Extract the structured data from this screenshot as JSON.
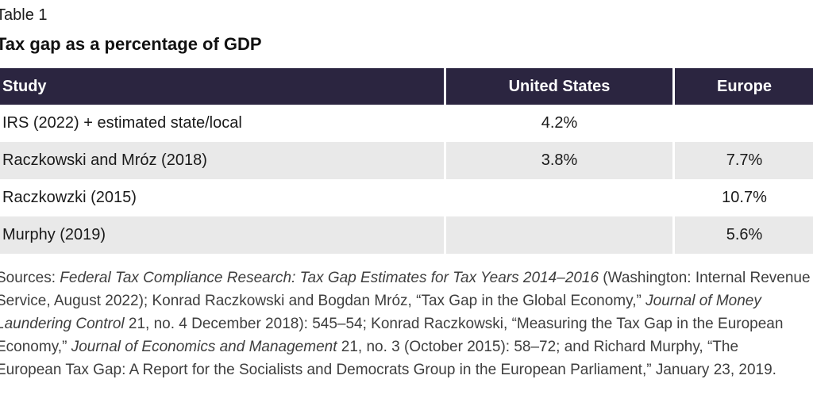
{
  "page": {
    "table_label": "Table 1",
    "title": "Tax gap as a percentage of GDP"
  },
  "colors": {
    "header_bg": "#2b2540",
    "alt_row_bg": "#e9e9e9",
    "sources_text": "#3e3e3e"
  },
  "table": {
    "headers": [
      "Study",
      "United States",
      "Europe"
    ],
    "rows": [
      {
        "study": "IRS (2022) + estimated state/local",
        "us": "4.2%",
        "europe": ""
      },
      {
        "study": "Raczkowski and Mróz (2018)",
        "us": "3.8%",
        "europe": "7.7%"
      },
      {
        "study": "Raczkowzki (2015)",
        "us": "",
        "europe": "10.7%"
      },
      {
        "study": "Murphy (2019)",
        "us": "",
        "europe": "5.6%"
      }
    ]
  },
  "sources": {
    "lines": [
      [
        {
          "t": "Sources: ",
          "i": false
        },
        {
          "t": "Federal Tax Compliance Research: Tax Gap Estimates for Tax Years 2014–2016",
          "i": true
        },
        {
          "t": " (Washington: Internal Revenue",
          "i": false
        }
      ],
      [
        {
          "t": "Service, August 2022); Konrad Raczkowski and Bogdan Mróz, “Tax Gap in the Global Economy,” ",
          "i": false
        },
        {
          "t": "Journal of Money",
          "i": true
        }
      ],
      [
        {
          "t": "Laundering Control",
          "i": true
        },
        {
          "t": " 21, no. 4 December 2018): 545–54; Konrad Raczkowski, “Measuring the Tax Gap in the European",
          "i": false
        }
      ],
      [
        {
          "t": "Economy,” ",
          "i": false
        },
        {
          "t": "Journal of Economics and Management",
          "i": true
        },
        {
          "t": " 21, no. 3 (October 2015): 58–72; and Richard Murphy, “The",
          "i": false
        }
      ],
      [
        {
          "t": "European Tax Gap: A Report for the Socialists and Democrats Group in the European Parliament,” January 23, 2019.",
          "i": false
        }
      ]
    ]
  }
}
